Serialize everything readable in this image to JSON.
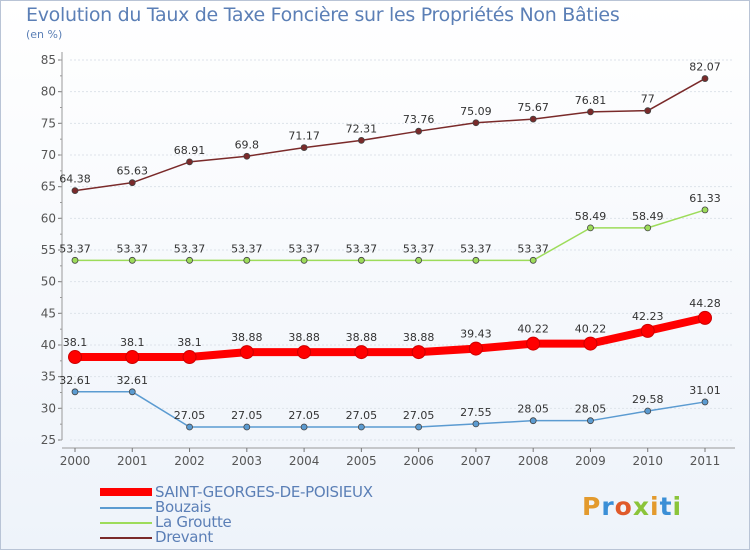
{
  "chart_data": {
    "type": "line",
    "title": "Evolution du Taux de Taxe Foncière sur les Propriétés Non Bâties",
    "ylabel": "(en %)",
    "xlabel": "",
    "categories": [
      "2000",
      "2001",
      "2002",
      "2003",
      "2004",
      "2005",
      "2006",
      "2007",
      "2008",
      "2009",
      "2010",
      "2011"
    ],
    "ylim": [
      25,
      85
    ],
    "yticks": [
      25,
      30,
      35,
      40,
      45,
      50,
      55,
      60,
      65,
      70,
      75,
      80,
      85
    ],
    "series": [
      {
        "name": "Drevant",
        "color": "#7a2a2a",
        "labels": [
          "64.38",
          "65.63",
          "68.91",
          "69.8",
          "71.17",
          "72.31",
          "73.76",
          "75.09",
          "75.67",
          "76.81",
          "77",
          "82.07"
        ],
        "values": [
          64.38,
          65.63,
          68.91,
          69.8,
          71.17,
          72.31,
          73.76,
          75.09,
          75.67,
          76.81,
          77,
          82.07
        ]
      },
      {
        "name": "La Groutte",
        "color": "#9ddc5a",
        "labels": [
          "53.37",
          "53.37",
          "53.37",
          "53.37",
          "53.37",
          "53.37",
          "53.37",
          "53.37",
          "53.37",
          "58.49",
          "58.49",
          "61.33"
        ],
        "values": [
          53.37,
          53.37,
          53.37,
          53.37,
          53.37,
          53.37,
          53.37,
          53.37,
          53.37,
          58.49,
          58.49,
          61.33
        ]
      },
      {
        "name": "SAINT-GEORGES-DE-POISIEUX",
        "color": "#ff0000",
        "labels": [
          "38.1",
          "38.1",
          "38.1",
          "38.88",
          "38.88",
          "38.88",
          "38.88",
          "39.43",
          "40.22",
          "40.22",
          "42.23",
          "44.28"
        ],
        "values": [
          38.1,
          38.1,
          38.1,
          38.88,
          38.88,
          38.88,
          38.88,
          39.43,
          40.22,
          40.22,
          42.23,
          44.28
        ]
      },
      {
        "name": "Bouzais",
        "color": "#5b9bd1",
        "labels": [
          "32.61",
          "32.61",
          "27.05",
          "27.05",
          "27.05",
          "27.05",
          "27.05",
          "27.55",
          "28.05",
          "28.05",
          "29.58",
          "31.01"
        ],
        "values": [
          32.61,
          32.61,
          27.05,
          27.05,
          27.05,
          27.05,
          27.05,
          27.55,
          28.05,
          28.05,
          29.58,
          31.01
        ]
      }
    ]
  },
  "legend": [
    {
      "name": "SAINT-GEORGES-DE-POISIEUX",
      "color": "#ff0000"
    },
    {
      "name": "Bouzais",
      "color": "#5b9bd1"
    },
    {
      "name": "La Groutte",
      "color": "#9ddc5a"
    },
    {
      "name": "Drevant",
      "color": "#7a2a2a"
    }
  ],
  "logo": {
    "text": "Proxiti",
    "colors": [
      "#e39a2d",
      "#3b8fd6",
      "#e05a2a",
      "#8bc43a",
      "#e39a2d",
      "#3b8fd6",
      "#8bc43a"
    ]
  }
}
